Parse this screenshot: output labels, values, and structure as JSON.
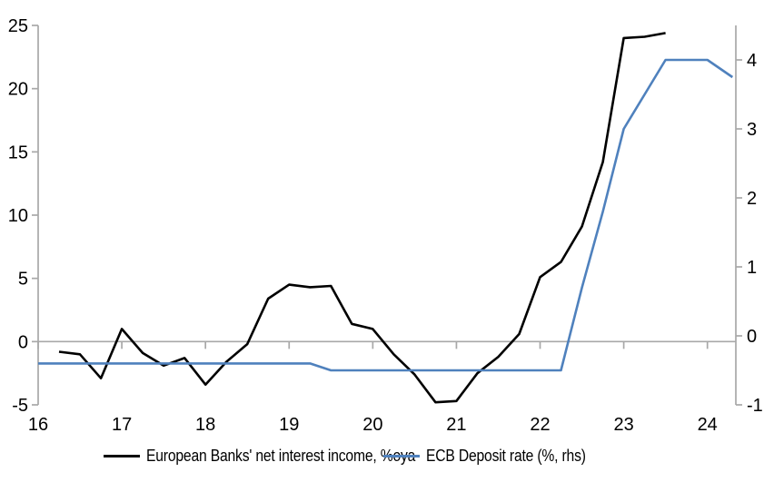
{
  "chart_data": {
    "type": "line",
    "title": "",
    "legend_position": "bottom",
    "background": "#ffffff",
    "colors": {
      "axis": "#a8a8a8",
      "text": "#000000"
    },
    "x_axis": {
      "min": 16,
      "max": 24.34,
      "ticks": [
        16,
        17,
        18,
        19,
        20,
        21,
        22,
        23,
        24
      ]
    },
    "left_axis": {
      "min": -5,
      "max": 25,
      "ticks": [
        -5,
        0,
        5,
        10,
        15,
        20,
        25
      ]
    },
    "right_axis": {
      "min": -1,
      "max": 4.5,
      "ticks": [
        -1,
        0,
        1,
        2,
        3,
        4
      ]
    },
    "series": [
      {
        "id": "nii-line",
        "name": "European Banks' net interest income, %oya",
        "axis": "left",
        "color": "#000000",
        "points": [
          [
            16.25,
            -0.8
          ],
          [
            16.5,
            -1.0
          ],
          [
            16.75,
            -2.9
          ],
          [
            17.0,
            1.0
          ],
          [
            17.25,
            -0.9
          ],
          [
            17.5,
            -1.9
          ],
          [
            17.75,
            -1.3
          ],
          [
            18.0,
            -3.4
          ],
          [
            18.25,
            -1.6
          ],
          [
            18.5,
            -0.2
          ],
          [
            18.75,
            3.4
          ],
          [
            19.0,
            4.5
          ],
          [
            19.25,
            4.3
          ],
          [
            19.5,
            4.4
          ],
          [
            19.75,
            1.4
          ],
          [
            20.0,
            1.0
          ],
          [
            20.25,
            -1.0
          ],
          [
            20.5,
            -2.6
          ],
          [
            20.75,
            -4.8
          ],
          [
            21.0,
            -4.7
          ],
          [
            21.25,
            -2.5
          ],
          [
            21.5,
            -1.2
          ],
          [
            21.75,
            0.6
          ],
          [
            22.0,
            5.1
          ],
          [
            22.25,
            6.3
          ],
          [
            22.5,
            9.1
          ],
          [
            22.75,
            14.2
          ],
          [
            23.0,
            24.0
          ],
          [
            23.25,
            24.1
          ],
          [
            23.5,
            24.4
          ]
        ]
      },
      {
        "id": "ecb-line",
        "name": "ECB Deposit rate (%, rhs)",
        "axis": "right",
        "color": "#4f81bd",
        "points": [
          [
            16.0,
            -0.4
          ],
          [
            16.25,
            -0.4
          ],
          [
            16.5,
            -0.4
          ],
          [
            16.75,
            -0.4
          ],
          [
            17.0,
            -0.4
          ],
          [
            17.25,
            -0.4
          ],
          [
            17.5,
            -0.4
          ],
          [
            17.75,
            -0.4
          ],
          [
            18.0,
            -0.4
          ],
          [
            18.25,
            -0.4
          ],
          [
            18.5,
            -0.4
          ],
          [
            18.75,
            -0.4
          ],
          [
            19.0,
            -0.4
          ],
          [
            19.25,
            -0.4
          ],
          [
            19.5,
            -0.5
          ],
          [
            19.75,
            -0.5
          ],
          [
            20.0,
            -0.5
          ],
          [
            20.25,
            -0.5
          ],
          [
            20.5,
            -0.5
          ],
          [
            20.75,
            -0.5
          ],
          [
            21.0,
            -0.5
          ],
          [
            21.25,
            -0.5
          ],
          [
            21.5,
            -0.5
          ],
          [
            21.75,
            -0.5
          ],
          [
            22.0,
            -0.5
          ],
          [
            22.25,
            -0.5
          ],
          [
            22.5,
            0.7
          ],
          [
            22.75,
            1.8
          ],
          [
            23.0,
            3.0
          ],
          [
            23.25,
            3.5
          ],
          [
            23.5,
            4.0
          ],
          [
            23.75,
            4.0
          ],
          [
            24.0,
            4.0
          ],
          [
            24.3,
            3.75
          ]
        ]
      }
    ]
  }
}
